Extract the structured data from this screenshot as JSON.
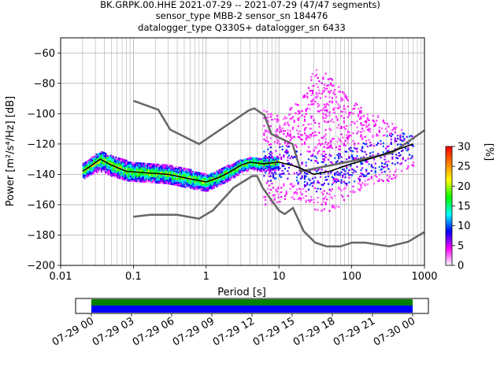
{
  "chart_data": {
    "type": "heatmap",
    "title_lines": [
      "BK.GRPK.00.HHE   2021-07-29 -- 2021-07-29  (47/47 segments)",
      "sensor_type MBB-2 sensor_sn 184476",
      "datalogger_type Q330S+ datalogger_sn 6433"
    ],
    "xlabel": "Period [s]",
    "ylabel": "Power [m²/s⁴/Hz] [dB]",
    "x_scale": "log",
    "xlim": [
      0.01,
      1000
    ],
    "ylim": [
      -200,
      -50
    ],
    "x_ticks": [
      {
        "value": 0.01,
        "label": "0.01"
      },
      {
        "value": 0.1,
        "label": "0.1"
      },
      {
        "value": 1,
        "label": "1"
      },
      {
        "value": 10,
        "label": "10"
      },
      {
        "value": 100,
        "label": "100"
      },
      {
        "value": 1000,
        "label": "1000"
      }
    ],
    "y_ticks": [
      -200,
      -180,
      -160,
      -140,
      -120,
      -100,
      -80,
      -60
    ],
    "grid": true,
    "colorbar": {
      "label": "[%]",
      "min": 0,
      "max": 30,
      "ticks": [
        0,
        5,
        10,
        15,
        20,
        25,
        30
      ],
      "colors": [
        "#ffffff",
        "#ff00ff",
        "#0000ff",
        "#00ffff",
        "#00ff00",
        "#ffff00",
        "#ff8000",
        "#ff0000"
      ]
    },
    "noise_models": {
      "high": {
        "color": "#666666",
        "points": [
          [
            0.1,
            -91.5
          ],
          [
            0.22,
            -97.4
          ],
          [
            0.32,
            -110.5
          ],
          [
            0.8,
            -120
          ],
          [
            3.8,
            -98.0
          ],
          [
            4.6,
            -96.5
          ],
          [
            6.3,
            -101
          ],
          [
            7.9,
            -113.5
          ],
          [
            15.4,
            -120
          ],
          [
            20,
            -138
          ],
          [
            354.8,
            -126
          ],
          [
            1000,
            -111
          ]
        ]
      },
      "low": {
        "color": "#666666",
        "points": [
          [
            0.1,
            -168
          ],
          [
            0.17,
            -166.7
          ],
          [
            0.4,
            -166.7
          ],
          [
            0.8,
            -169.2
          ],
          [
            1.24,
            -163.7
          ],
          [
            2.4,
            -148.6
          ],
          [
            4.3,
            -141.1
          ],
          [
            5,
            -141.1
          ],
          [
            6,
            -149
          ],
          [
            10,
            -163.8
          ],
          [
            12,
            -166.2
          ],
          [
            15.6,
            -162.1
          ],
          [
            21.9,
            -177.5
          ],
          [
            31.6,
            -185
          ],
          [
            45,
            -187.5
          ],
          [
            70,
            -187.5
          ],
          [
            101,
            -185
          ],
          [
            154,
            -185
          ],
          [
            328,
            -187.5
          ],
          [
            600,
            -184.4
          ],
          [
            1000,
            -178
          ]
        ]
      }
    },
    "mean_psd": {
      "color": "#000000",
      "points": [
        [
          0.02,
          -138
        ],
        [
          0.025,
          -135
        ],
        [
          0.035,
          -130
        ],
        [
          0.05,
          -134
        ],
        [
          0.08,
          -138
        ],
        [
          0.15,
          -139
        ],
        [
          0.3,
          -140
        ],
        [
          0.6,
          -143
        ],
        [
          1.0,
          -145
        ],
        [
          1.5,
          -142
        ],
        [
          2.0,
          -139
        ],
        [
          3.0,
          -134
        ],
        [
          4.0,
          -132
        ],
        [
          6.0,
          -133
        ],
        [
          10,
          -132
        ],
        [
          15,
          -134
        ],
        [
          20,
          -136
        ],
        [
          30,
          -140
        ],
        [
          50,
          -138
        ],
        [
          100,
          -133
        ],
        [
          200,
          -129
        ],
        [
          400,
          -124
        ],
        [
          700,
          -120
        ]
      ]
    },
    "psd_band": {
      "dense": [
        [
          0.02,
          -133,
          -143
        ],
        [
          0.025,
          -129,
          -140
        ],
        [
          0.035,
          -125,
          -138
        ],
        [
          0.05,
          -128,
          -141
        ],
        [
          0.08,
          -131,
          -144
        ],
        [
          0.15,
          -133,
          -145
        ],
        [
          0.3,
          -134,
          -146
        ],
        [
          0.6,
          -137,
          -149
        ],
        [
          1.0,
          -140,
          -151
        ],
        [
          1.5,
          -137,
          -147
        ],
        [
          2.0,
          -134,
          -144
        ],
        [
          3.0,
          -130,
          -139
        ],
        [
          4.0,
          -129,
          -137
        ],
        [
          6.0,
          -129,
          -138
        ],
        [
          10,
          -129,
          -138
        ]
      ],
      "sparse": [
        [
          6,
          -96,
          -160
        ],
        [
          10,
          -102,
          -158
        ],
        [
          15,
          -95,
          -156
        ],
        [
          20,
          -90,
          -158
        ],
        [
          25,
          -80,
          -160
        ],
        [
          30,
          -70,
          -164
        ],
        [
          40,
          -72,
          -165
        ],
        [
          60,
          -80,
          -163
        ],
        [
          100,
          -92,
          -152
        ],
        [
          200,
          -100,
          -147
        ],
        [
          400,
          -108,
          -143
        ],
        [
          700,
          -115,
          -135
        ]
      ]
    },
    "timeline": {
      "x_ticks": [
        "07-29 00",
        "07-29 03",
        "07-29 06",
        "07-29 09",
        "07-29 12",
        "07-29 15",
        "07-29 18",
        "07-29 21",
        "07-30 00"
      ],
      "bands": [
        {
          "color": "#008000"
        },
        {
          "color": "#0000ff"
        }
      ]
    }
  }
}
